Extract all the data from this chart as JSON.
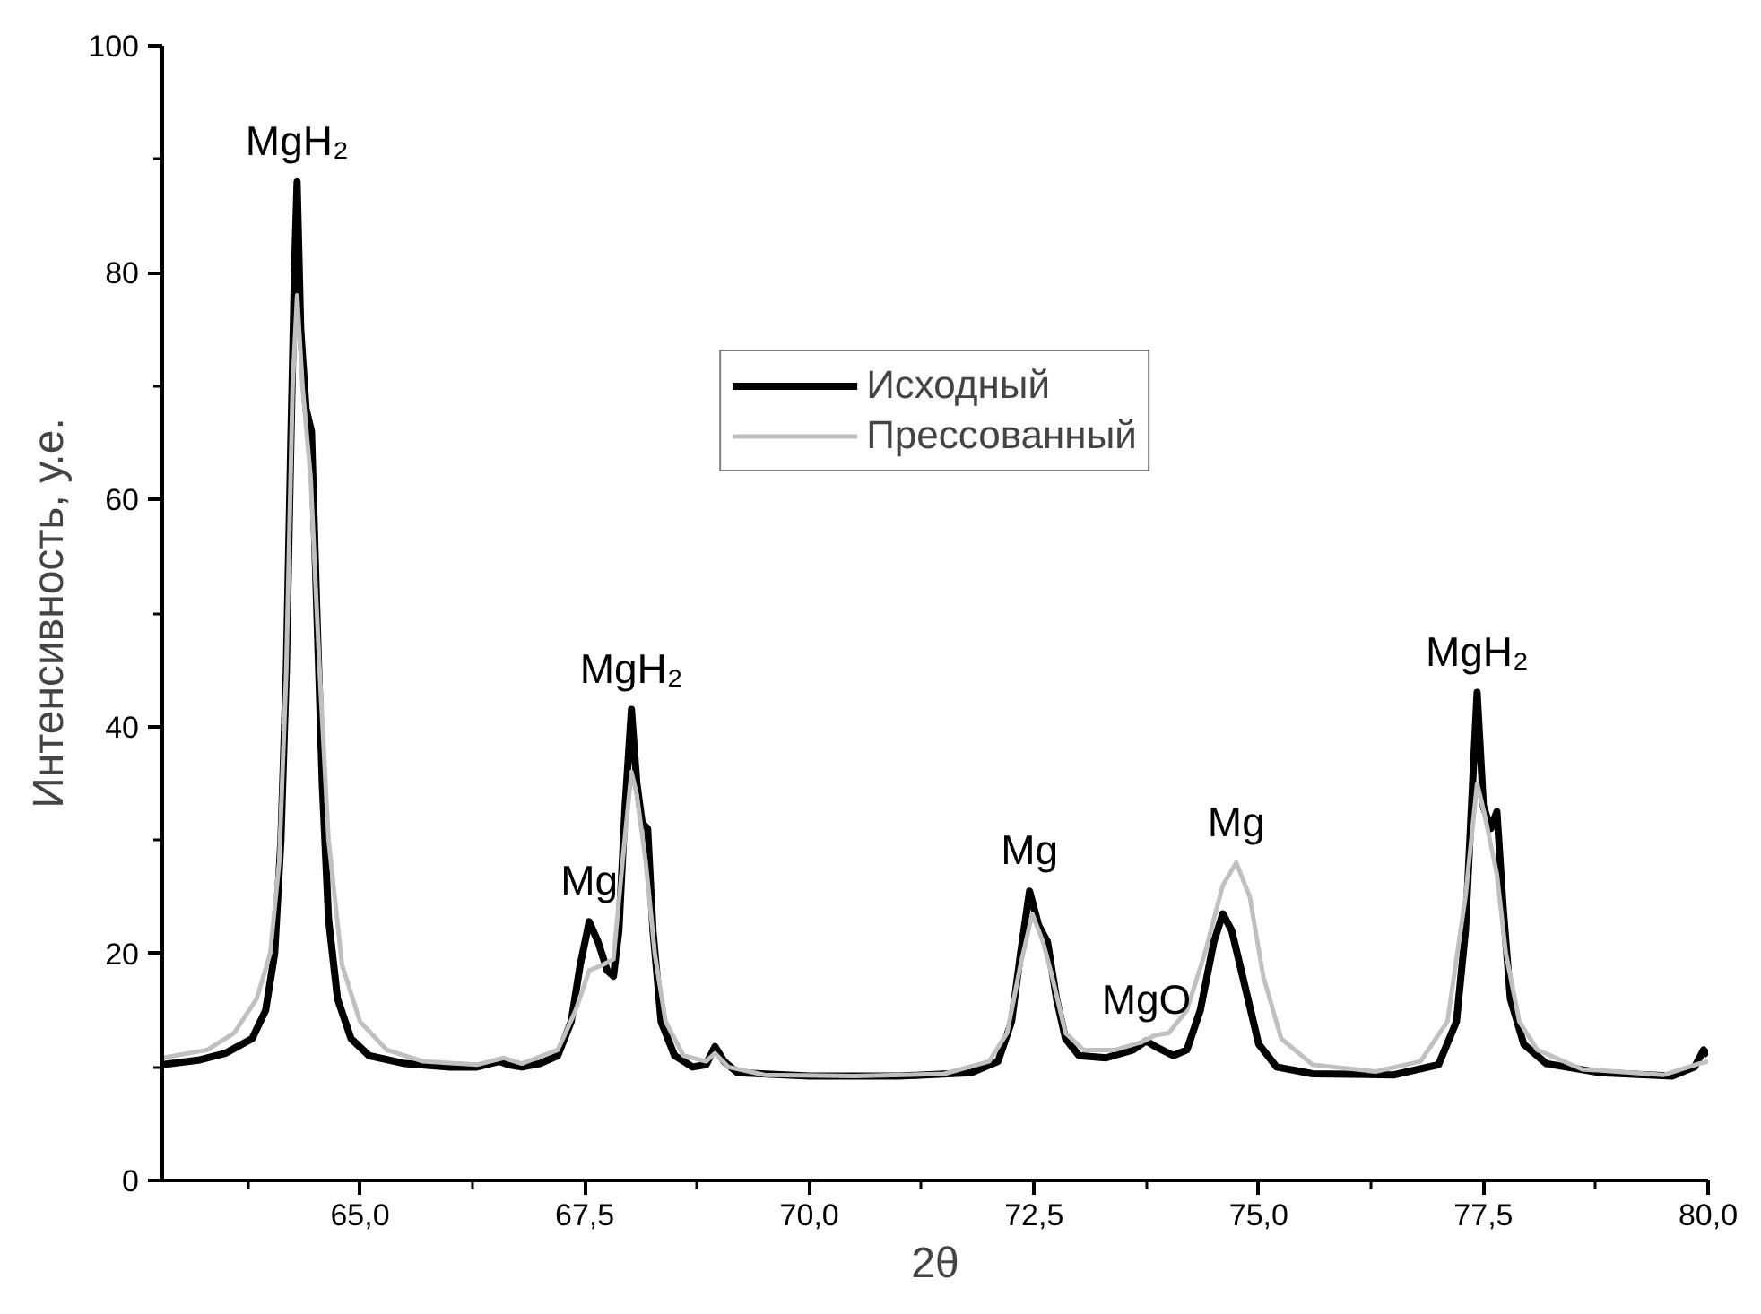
{
  "chart_data": {
    "type": "line",
    "xlabel": "2θ",
    "ylabel": "Интенсивность, у.е.",
    "xlim": [
      62.8,
      80
    ],
    "ylim": [
      0,
      100
    ],
    "xticks": [
      {
        "value": 65,
        "label": "65,0"
      },
      {
        "value": 67.5,
        "label": "67,5"
      },
      {
        "value": 70,
        "label": "70,0"
      },
      {
        "value": 72.5,
        "label": "72,5"
      },
      {
        "value": 75,
        "label": "75,0"
      },
      {
        "value": 77.5,
        "label": "77,5"
      },
      {
        "value": 80,
        "label": "80,0"
      }
    ],
    "yticks": [
      0,
      20,
      40,
      60,
      80,
      100
    ],
    "grid": false,
    "legend": "top",
    "line_style": "solid",
    "marker": "none",
    "series": [
      {
        "name": "Исходный",
        "color": "#000000",
        "x": [
          62.8,
          63.2,
          63.5,
          63.8,
          63.95,
          64.05,
          64.12,
          64.18,
          64.23,
          64.27,
          64.3,
          64.34,
          64.4,
          64.46,
          64.52,
          64.58,
          64.65,
          64.75,
          64.9,
          65.1,
          65.5,
          66.0,
          66.3,
          66.55,
          66.65,
          66.8,
          67.0,
          67.2,
          67.35,
          67.45,
          67.55,
          67.65,
          67.75,
          67.82,
          67.88,
          67.95,
          68.02,
          68.08,
          68.14,
          68.2,
          68.26,
          68.35,
          68.5,
          68.7,
          68.85,
          68.95,
          69.05,
          69.2,
          70.0,
          71.0,
          71.8,
          72.1,
          72.25,
          72.35,
          72.45,
          72.55,
          72.65,
          72.75,
          72.85,
          73.0,
          73.3,
          73.6,
          73.75,
          73.85,
          74.05,
          74.2,
          74.35,
          74.5,
          74.6,
          74.7,
          74.85,
          75.0,
          75.2,
          75.6,
          76.5,
          77.0,
          77.2,
          77.3,
          77.38,
          77.43,
          77.5,
          77.58,
          77.65,
          77.72,
          77.8,
          77.95,
          78.2,
          78.8,
          79.6,
          79.85,
          79.95,
          80.0
        ],
        "values": [
          10.2,
          10.6,
          11.2,
          12.5,
          15,
          20,
          30,
          45,
          65,
          80,
          88,
          75,
          68,
          66,
          50,
          35,
          23,
          16,
          12.5,
          11,
          10.3,
          10,
          10,
          10.5,
          10.2,
          10,
          10.3,
          11,
          14,
          19,
          22.8,
          21,
          18.5,
          18,
          22,
          33,
          41.5,
          35,
          31.5,
          31,
          22,
          14,
          11,
          10,
          10.2,
          11.8,
          10.5,
          9.5,
          9.2,
          9.2,
          9.5,
          10.5,
          14,
          20,
          25.5,
          22.5,
          21,
          16,
          12.5,
          11,
          10.8,
          11.5,
          12.3,
          11.8,
          11,
          11.5,
          15,
          21,
          23.5,
          22,
          17,
          12,
          10,
          9.4,
          9.3,
          10.2,
          14,
          22,
          35,
          43,
          33,
          31,
          32.5,
          24,
          16,
          12,
          10.3,
          9.5,
          9.2,
          10,
          11.5,
          11
        ]
      },
      {
        "name": "Прессованный",
        "color": "#c0c0c0",
        "x": [
          62.8,
          63.3,
          63.6,
          63.85,
          64.0,
          64.1,
          64.18,
          64.25,
          64.3,
          64.36,
          64.45,
          64.55,
          64.65,
          64.8,
          65.0,
          65.3,
          65.7,
          66.3,
          66.6,
          66.8,
          67.2,
          67.4,
          67.55,
          67.7,
          67.82,
          67.92,
          68.02,
          68.08,
          68.18,
          68.28,
          68.4,
          68.6,
          68.85,
          68.95,
          69.1,
          69.5,
          70.5,
          71.5,
          72.0,
          72.2,
          72.35,
          72.48,
          72.6,
          72.7,
          72.85,
          73.05,
          73.4,
          73.7,
          73.85,
          74.0,
          74.2,
          74.4,
          74.6,
          74.75,
          74.9,
          75.05,
          75.25,
          75.6,
          76.3,
          76.8,
          77.1,
          77.3,
          77.43,
          77.52,
          77.65,
          77.75,
          77.9,
          78.1,
          78.6,
          79.5,
          79.9,
          80.0
        ],
        "values": [
          10.8,
          11.5,
          13,
          16,
          20,
          28,
          45,
          70,
          78,
          70,
          62,
          45,
          30,
          19,
          14,
          11.5,
          10.5,
          10.2,
          10.8,
          10.3,
          11.5,
          15,
          18.5,
          19,
          19.5,
          28,
          36,
          34,
          28,
          20,
          14,
          11,
          10.5,
          11.2,
          10,
          9.3,
          9.2,
          9.4,
          10.5,
          13,
          19,
          23.5,
          21,
          18,
          13,
          11.5,
          11.5,
          12.2,
          12.8,
          13,
          15,
          20,
          26,
          28,
          25,
          18,
          12.5,
          10.2,
          9.6,
          10.5,
          14,
          25,
          35,
          32,
          27,
          20,
          14,
          11.5,
          9.8,
          9.3,
          10.3,
          10.5
        ]
      }
    ],
    "annotations": [
      {
        "text": "MgH₂",
        "x": 64.3,
        "y": 88
      },
      {
        "text": "Mg",
        "x": 67.55,
        "y": 22.8
      },
      {
        "text": "MgH₂",
        "x": 68.02,
        "y": 41.5
      },
      {
        "text": "Mg",
        "x": 72.45,
        "y": 25.5
      },
      {
        "text": "MgO",
        "x": 73.75,
        "y": 12.3
      },
      {
        "text": "Mg",
        "x": 74.75,
        "y": 28
      },
      {
        "text": "MgH₂",
        "x": 77.43,
        "y": 43
      }
    ]
  }
}
